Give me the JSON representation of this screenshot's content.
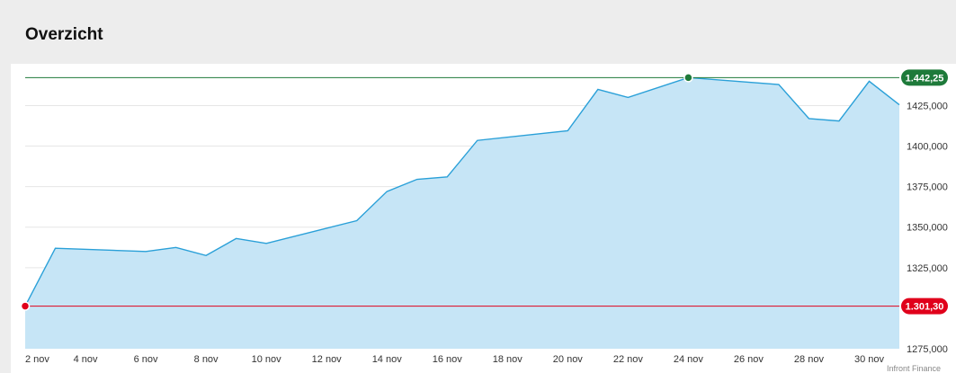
{
  "page": {
    "title": "Overzicht"
  },
  "chart_data": {
    "type": "area",
    "title": "Overzicht",
    "xlabel": "",
    "ylabel": "",
    "x_ticks": [
      "2 nov",
      "4 nov",
      "6 nov",
      "8 nov",
      "10 nov",
      "12 nov",
      "14 nov",
      "16 nov",
      "18 nov",
      "20 nov",
      "22 nov",
      "24 nov",
      "26 nov",
      "28 nov",
      "30 nov"
    ],
    "y_ticks": [
      "1425,000",
      "1400,000",
      "1375,000",
      "1350,000",
      "1325,000",
      "1275,000"
    ],
    "ylim": [
      1275,
      1443
    ],
    "x_range_days": [
      2,
      31
    ],
    "grid": true,
    "series": [
      {
        "x": [
          "2 nov",
          "3 nov",
          "6 nov",
          "7 nov",
          "8 nov",
          "9 nov",
          "10 nov",
          "13 nov",
          "14 nov",
          "15 nov",
          "16 nov",
          "17 nov",
          "20 nov",
          "21 nov",
          "22 nov",
          "24 nov",
          "27 nov",
          "28 nov",
          "29 nov",
          "30 nov",
          "1 dec"
        ],
        "x_day": [
          2,
          3,
          6,
          7,
          8,
          9,
          10,
          13,
          14,
          15,
          16,
          17,
          20,
          21,
          22,
          24,
          27,
          28,
          29,
          30,
          31
        ],
        "values": [
          1301.3,
          1337,
          1335,
          1337.5,
          1332.5,
          1343,
          1340,
          1354,
          1372,
          1379.5,
          1381,
          1403.5,
          1409.5,
          1435,
          1430,
          1442.25,
          1438,
          1417,
          1415.5,
          1440,
          1425.5
        ]
      }
    ],
    "reference_lines": {
      "high": {
        "label": "1.442,25",
        "value": 1442.25,
        "color": "#1e7a3a"
      },
      "low": {
        "label": "1.301,30",
        "value": 1301.3,
        "color": "#e0001b"
      }
    },
    "colors": {
      "line": "#2aa0d8",
      "fill": "#c6e5f6",
      "high": "#1e7a3a",
      "low": "#e0001b"
    },
    "credit": "Infront Finance"
  }
}
